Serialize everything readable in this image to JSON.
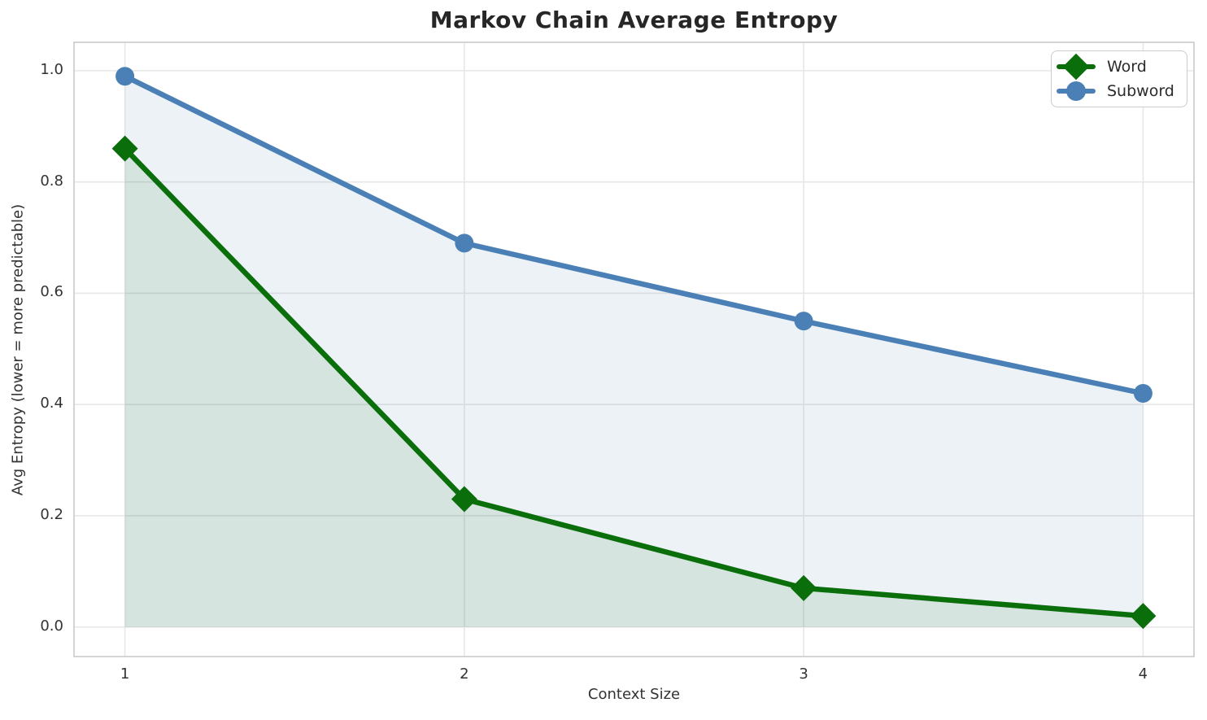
{
  "title": "Markov Chain Average Entropy",
  "axes": {
    "xlabel": "Context Size",
    "ylabel": "Avg Entropy (lower = more predictable)",
    "x_tick_labels": [
      "1",
      "2",
      "3",
      "4"
    ],
    "y_tick_labels": [
      "0.0",
      "0.2",
      "0.4",
      "0.6",
      "0.8",
      "1.0"
    ]
  },
  "legend": {
    "position": "upper right",
    "items": [
      {
        "label": "Word",
        "marker": "diamond",
        "color": "#0a6e0a"
      },
      {
        "label": "Subword",
        "marker": "circle",
        "color": "#4a80b5"
      }
    ]
  },
  "colors": {
    "word_green": "#0a6e0a",
    "subword_blue": "#4a80b5",
    "grid": "#e7e7e7",
    "spine": "#cfcfcf",
    "title_text": "#262626",
    "tick_text": "#333333"
  },
  "chart_data": {
    "type": "line",
    "title": "Markov Chain Average Entropy",
    "xlabel": "Context Size",
    "ylabel": "Avg Entropy (lower = more predictable)",
    "x": [
      1,
      2,
      3,
      4
    ],
    "x_ticks": [
      1,
      2,
      3,
      4
    ],
    "y_ticks": [
      0.0,
      0.2,
      0.4,
      0.6,
      0.8,
      1.0
    ],
    "xlim": [
      0.85,
      4.15
    ],
    "ylim": [
      -0.053,
      1.051
    ],
    "grid": true,
    "legend_position": "upper right",
    "fill_to_zero": true,
    "fill_alpha": 0.1,
    "series": [
      {
        "name": "Word",
        "marker": "diamond",
        "color": "#0a6e0a",
        "values": [
          0.86,
          0.23,
          0.07,
          0.02
        ]
      },
      {
        "name": "Subword",
        "marker": "circle",
        "color": "#4a80b5",
        "values": [
          0.99,
          0.69,
          0.55,
          0.42
        ]
      }
    ]
  }
}
